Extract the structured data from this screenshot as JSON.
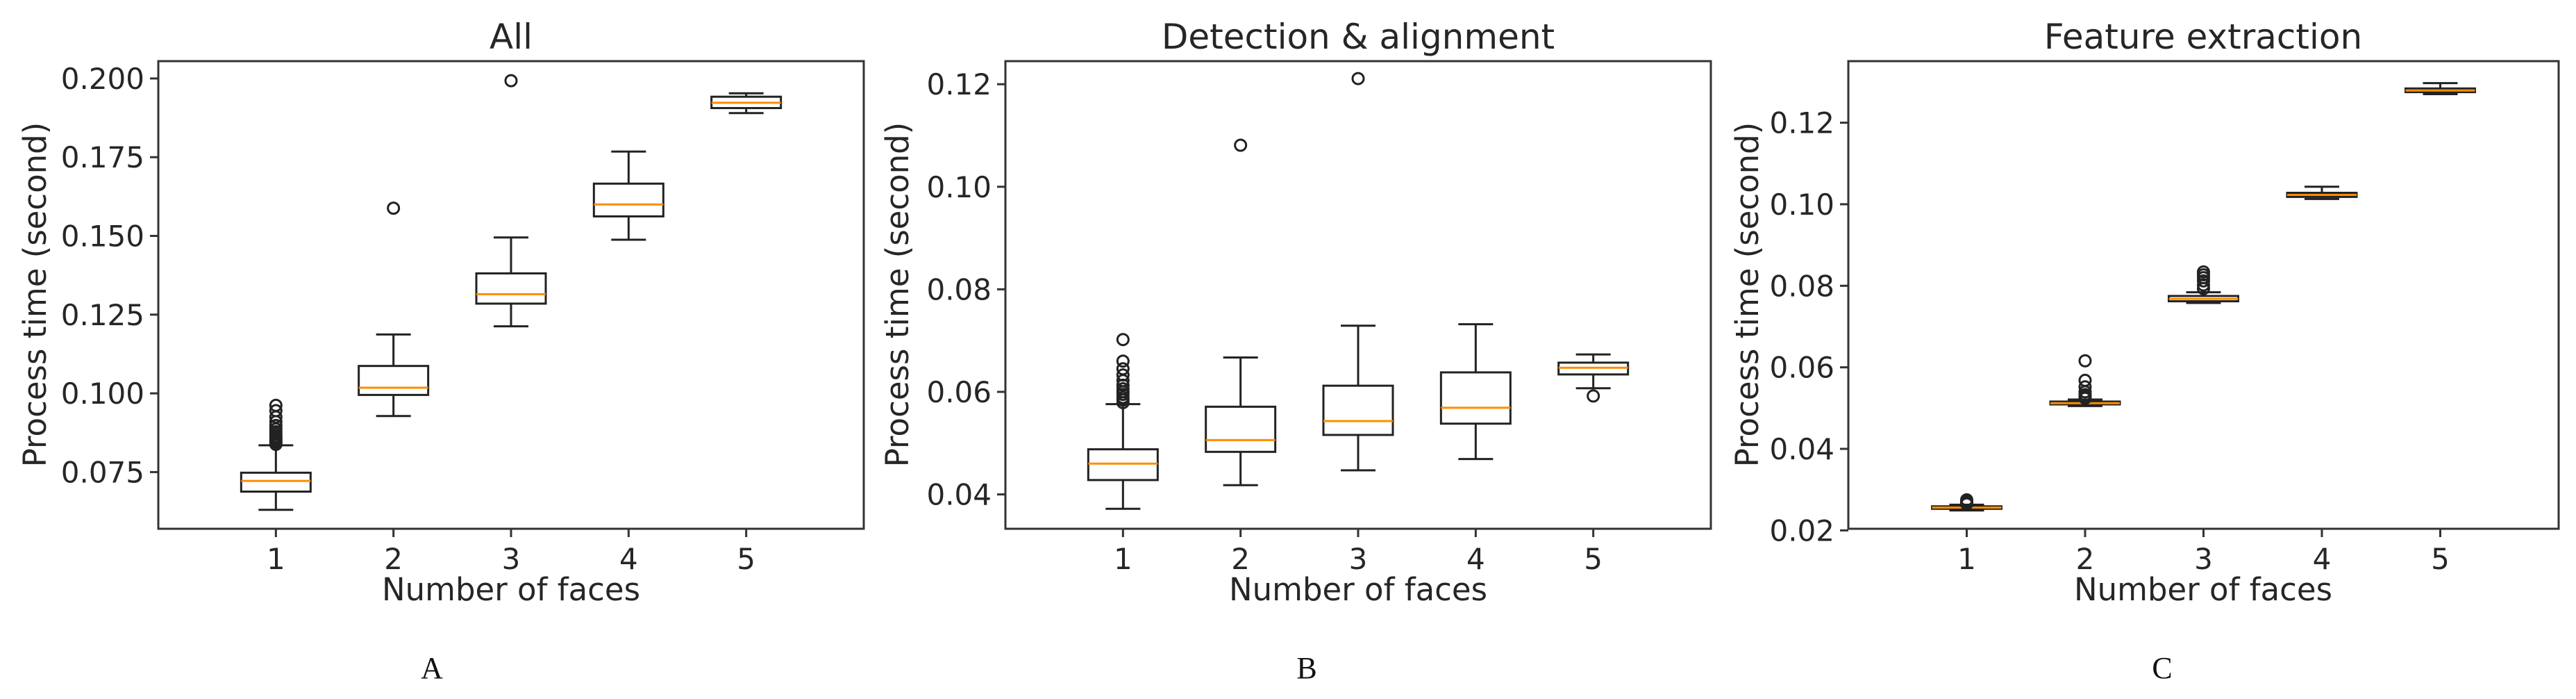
{
  "figure": {
    "panel_letters": [
      "A",
      "B",
      "C"
    ],
    "median_color": "#ff8c00",
    "box_color": "#222222"
  },
  "chart_data": [
    {
      "type": "box",
      "panel_letter": "A",
      "title": "All",
      "xlabel": "Number of faces",
      "ylabel": "Process time (second)",
      "categories": [
        "1",
        "2",
        "3",
        "4",
        "5"
      ],
      "ylim": [
        0.057,
        0.2055
      ],
      "yticks": [
        0.075,
        0.1,
        0.125,
        0.15,
        0.175,
        0.2
      ],
      "ytick_labels": [
        "0.075",
        "0.100",
        "0.125",
        "0.150",
        "0.175",
        "0.200"
      ],
      "boxes": [
        {
          "whislo": 0.063,
          "q1": 0.0688,
          "med": 0.0722,
          "q3": 0.0748,
          "whishi": 0.0835,
          "fliers": [
            0.0838,
            0.0842,
            0.0847,
            0.0852,
            0.0857,
            0.0863,
            0.087,
            0.0878,
            0.0887,
            0.0898,
            0.091,
            0.0925,
            0.0945,
            0.0962
          ]
        },
        {
          "whislo": 0.0928,
          "q1": 0.0995,
          "med": 0.1018,
          "q3": 0.1087,
          "whishi": 0.1187,
          "fliers": [
            0.1588
          ]
        },
        {
          "whislo": 0.1213,
          "q1": 0.1285,
          "med": 0.1315,
          "q3": 0.1381,
          "whishi": 0.1495,
          "fliers": [
            0.1993
          ]
        },
        {
          "whislo": 0.1488,
          "q1": 0.1562,
          "med": 0.16,
          "q3": 0.1666,
          "whishi": 0.1768,
          "fliers": []
        },
        {
          "whislo": 0.189,
          "q1": 0.1906,
          "med": 0.1923,
          "q3": 0.1942,
          "whishi": 0.1953,
          "fliers": []
        }
      ]
    },
    {
      "type": "box",
      "panel_letter": "B",
      "title": "Detection & alignment",
      "xlabel": "Number of faces",
      "ylabel": "Process time (second)",
      "categories": [
        "1",
        "2",
        "3",
        "4",
        "5"
      ],
      "ylim": [
        0.0333,
        0.1245
      ],
      "yticks": [
        0.04,
        0.06,
        0.08,
        0.1,
        0.12
      ],
      "ytick_labels": [
        "0.04",
        "0.06",
        "0.08",
        "0.10",
        "0.12"
      ],
      "boxes": [
        {
          "whislo": 0.0372,
          "q1": 0.0428,
          "med": 0.046,
          "q3": 0.0488,
          "whishi": 0.0576,
          "fliers": [
            0.0579,
            0.0584,
            0.0589,
            0.0595,
            0.06,
            0.0606,
            0.0613,
            0.0622,
            0.0633,
            0.0645,
            0.066,
            0.0702
          ]
        },
        {
          "whislo": 0.0418,
          "q1": 0.0483,
          "med": 0.0506,
          "q3": 0.0571,
          "whishi": 0.0667,
          "fliers": [
            0.1081
          ]
        },
        {
          "whislo": 0.0447,
          "q1": 0.0516,
          "med": 0.0543,
          "q3": 0.0612,
          "whishi": 0.0729,
          "fliers": [
            0.1211
          ]
        },
        {
          "whislo": 0.0469,
          "q1": 0.0538,
          "med": 0.0569,
          "q3": 0.0638,
          "whishi": 0.0732,
          "fliers": []
        },
        {
          "whislo": 0.0607,
          "q1": 0.0634,
          "med": 0.0647,
          "q3": 0.0657,
          "whishi": 0.0673,
          "fliers": [
            0.0592
          ]
        }
      ]
    },
    {
      "type": "box",
      "panel_letter": "C",
      "title": "Feature extraction",
      "xlabel": "Number of faces",
      "ylabel": "Process time (second)",
      "categories": [
        "1",
        "2",
        "3",
        "4",
        "5"
      ],
      "ylim": [
        0.0204,
        0.1351
      ],
      "yticks": [
        0.02,
        0.04,
        0.06,
        0.08,
        0.1,
        0.12
      ],
      "ytick_labels": [
        "0.02",
        "0.04",
        "0.06",
        "0.08",
        "0.10",
        "0.12"
      ],
      "boxes": [
        {
          "whislo": 0.0249,
          "q1": 0.0253,
          "med": 0.0256,
          "q3": 0.0259,
          "whishi": 0.0263,
          "fliers": [
            0.0265,
            0.0268,
            0.0271,
            0.0275
          ]
        },
        {
          "whislo": 0.0505,
          "q1": 0.0509,
          "med": 0.0512,
          "q3": 0.0516,
          "whishi": 0.0521,
          "fliers": [
            0.0524,
            0.0528,
            0.0533,
            0.054,
            0.0552,
            0.0568,
            0.0616
          ]
        },
        {
          "whislo": 0.0758,
          "q1": 0.0762,
          "med": 0.0768,
          "q3": 0.0775,
          "whishi": 0.0784,
          "fliers": [
            0.0793,
            0.0802,
            0.0812,
            0.082,
            0.0827,
            0.0834
          ]
        },
        {
          "whislo": 0.1013,
          "q1": 0.1018,
          "med": 0.1023,
          "q3": 0.1028,
          "whishi": 0.1043,
          "fliers": []
        },
        {
          "whislo": 0.127,
          "q1": 0.1275,
          "med": 0.1279,
          "q3": 0.1284,
          "whishi": 0.1297,
          "fliers": []
        }
      ]
    }
  ]
}
